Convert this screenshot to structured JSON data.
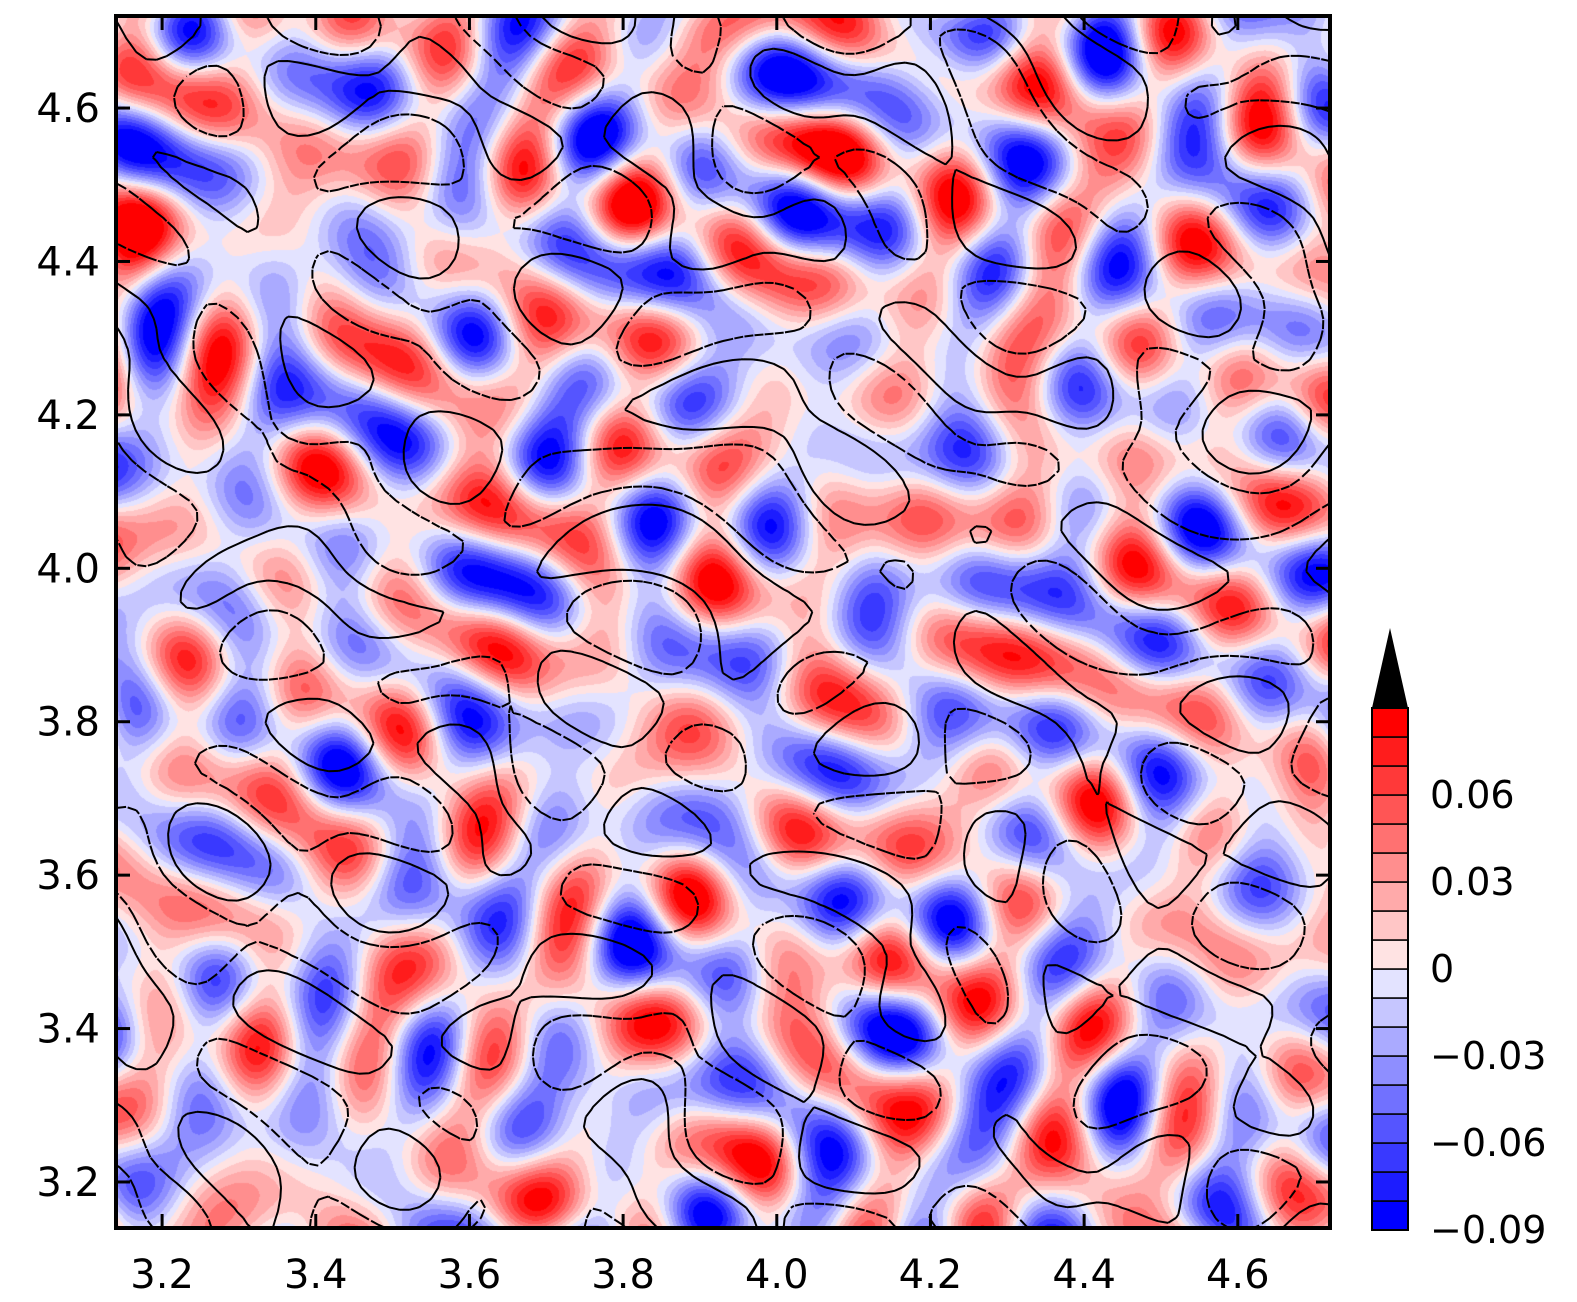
{
  "chart_data": {
    "type": "heatmap",
    "title": "",
    "xlabel": "",
    "ylabel": "",
    "xlim": [
      3.14,
      4.72
    ],
    "ylim": [
      3.14,
      4.72
    ],
    "x_ticks": [
      3.2,
      3.4,
      3.6,
      3.8,
      4.0,
      4.2,
      4.4,
      4.6
    ],
    "y_ticks": [
      3.2,
      3.4,
      3.6,
      3.8,
      4.0,
      4.2,
      4.4,
      4.6
    ],
    "x_tick_labels": [
      "3.2",
      "3.4",
      "3.6",
      "3.8",
      "4.0",
      "4.2",
      "4.4",
      "4.6"
    ],
    "y_tick_labels": [
      "3.2",
      "3.4",
      "3.6",
      "3.8",
      "4.0",
      "4.2",
      "4.4",
      "4.6"
    ],
    "colorbar": {
      "min": -0.09,
      "max": 0.09,
      "step": 0.01,
      "extend": "max",
      "ticks": [
        -0.09,
        -0.06,
        -0.03,
        0,
        0.03,
        0.06
      ],
      "tick_labels": [
        "−0.09",
        "−0.06",
        "−0.03",
        "0",
        "0.03",
        "0.06"
      ],
      "colormap": "blue-white-red",
      "extend_color": "#000000"
    },
    "overlay": "solid and dashed black contour lines",
    "grid": false
  },
  "colors": {
    "negative": "#0000ff",
    "zero": "#ffffff",
    "positive": "#ff0000",
    "contour": "#000000"
  }
}
